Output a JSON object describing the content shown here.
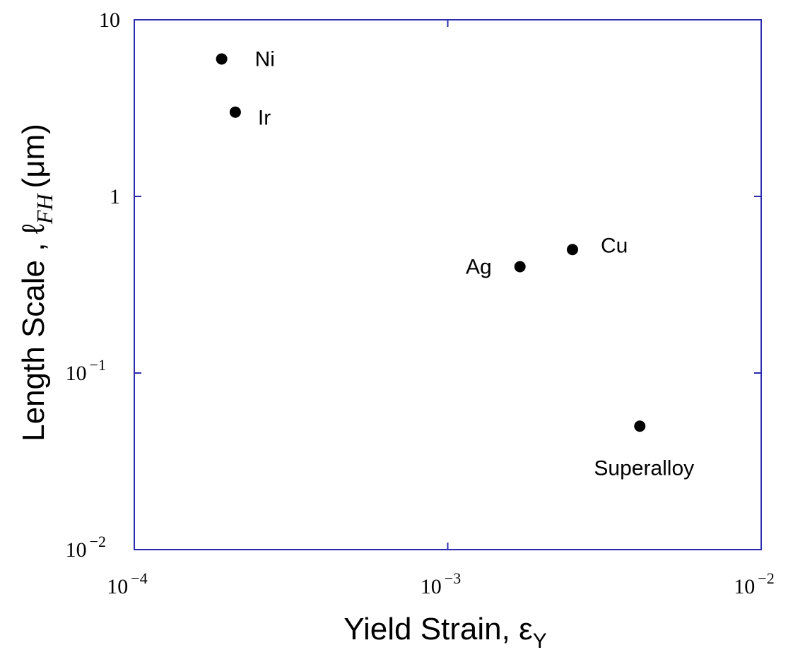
{
  "chart_data": {
    "type": "scatter",
    "x_label": "Yield Strain, ε",
    "x_label_sub": "Y",
    "y_label": "Length Scale , ℓ",
    "y_label_sub": "FH",
    "y_label_unit": "(μm)",
    "x": [
      0.00019,
      0.00021,
      0.0017,
      0.0025,
      0.0041
    ],
    "values": [
      6,
      3,
      0.4,
      0.5,
      0.05
    ],
    "labels": [
      "Ni",
      "Ir",
      "Ag",
      "Cu",
      "Superalloy"
    ],
    "color": "#000000",
    "axis_color": "#2b2bb0",
    "xlog": true,
    "ylog": true,
    "xlim": [
      0.0001,
      0.01
    ],
    "ylim": [
      0.01,
      10
    ],
    "xticks": [
      {
        "value": 0.0001,
        "label": "10",
        "exponent": "−4"
      },
      {
        "value": 0.001,
        "label": "10",
        "exponent": "−3"
      },
      {
        "value": 0.01,
        "label": "10",
        "exponent": "−2"
      }
    ],
    "yticks": [
      {
        "value": 0.01,
        "label": "10",
        "exponent": "−2"
      },
      {
        "value": 0.1,
        "label": "10",
        "exponent": "−1"
      },
      1,
      10
    ]
  }
}
